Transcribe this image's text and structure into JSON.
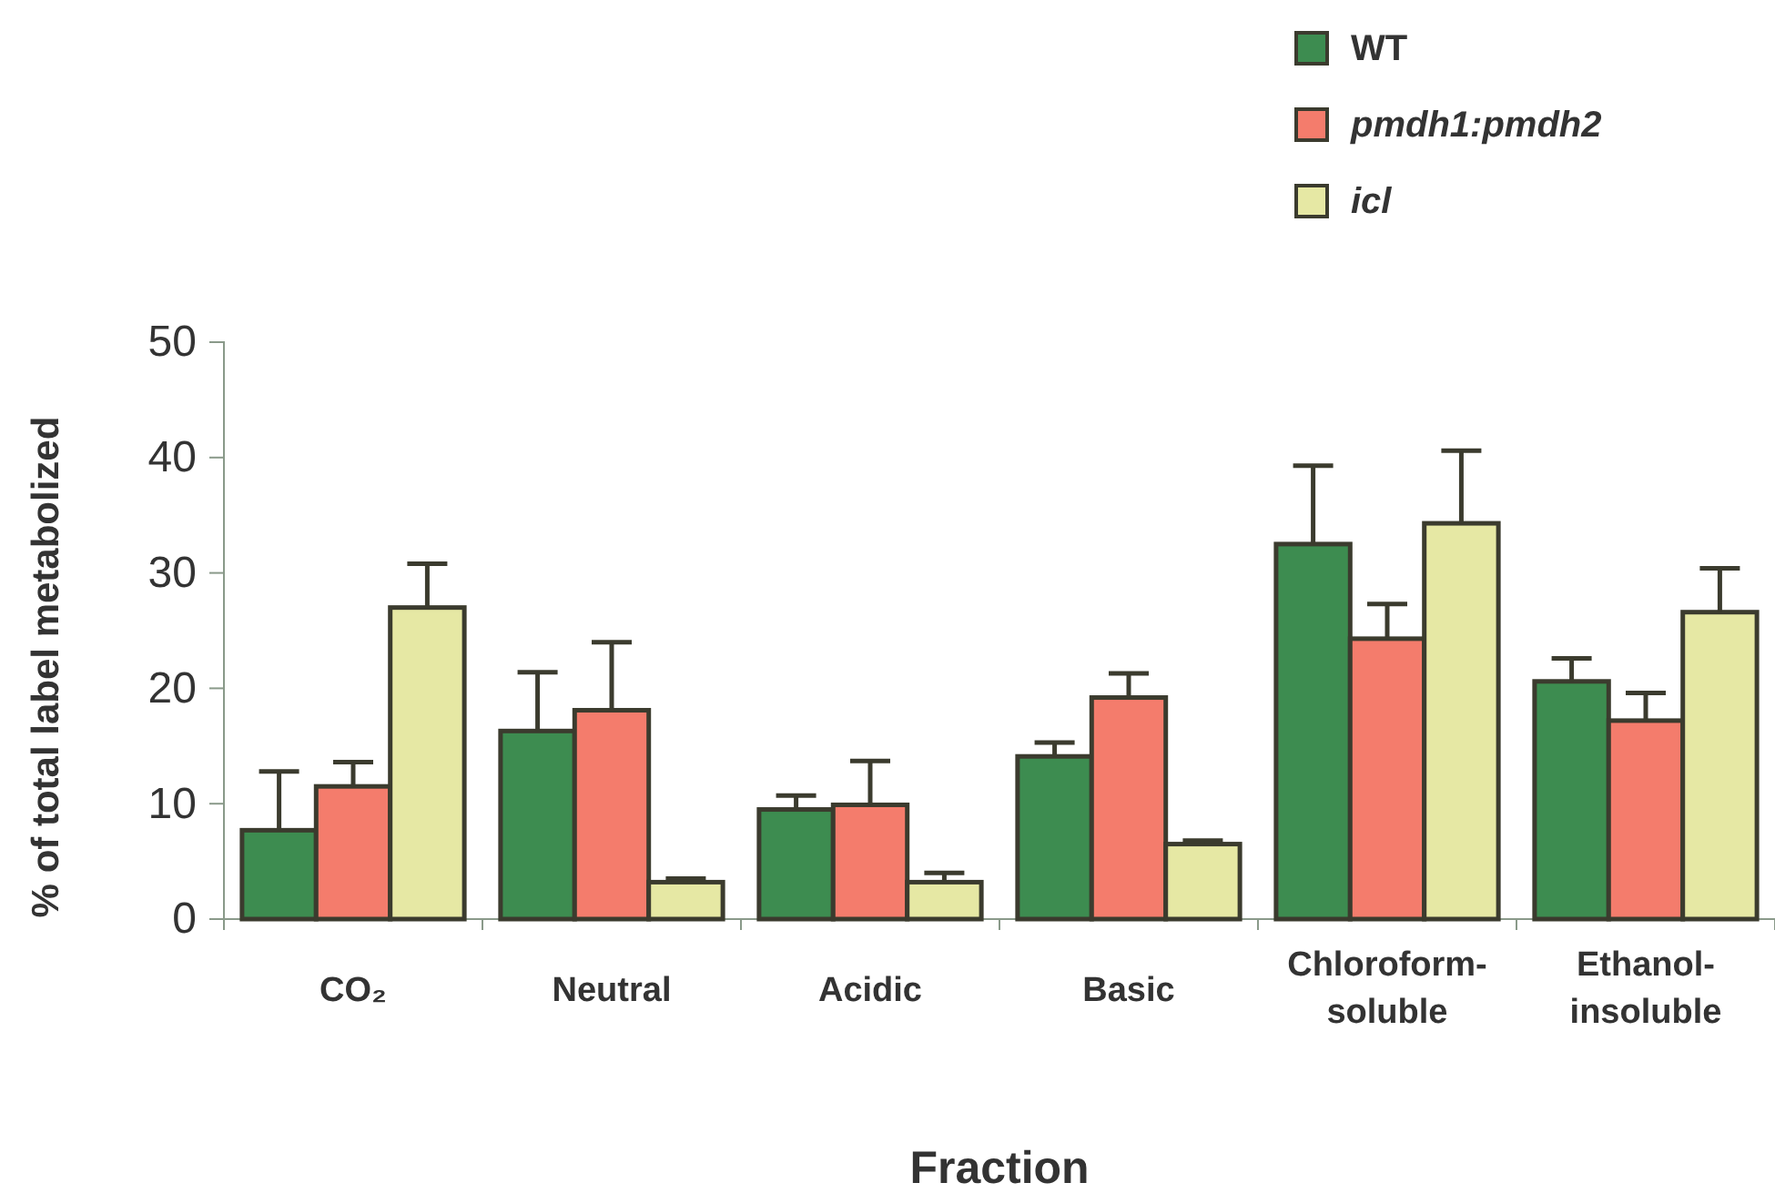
{
  "chart_data": {
    "type": "bar",
    "xlabel": "Fraction",
    "ylabel": "% of total label metabolized",
    "categories": [
      "CO₂",
      "Neutral",
      "Acidic",
      "Basic",
      "Chloroform-soluble",
      "Ethanol-insoluble"
    ],
    "series": [
      {
        "name": "WT",
        "color": "#3d8c50",
        "values": [
          7.7,
          16.3,
          9.5,
          14.1,
          32.5,
          20.6
        ],
        "errors": [
          [
            7.7,
            12.8
          ],
          [
            16.3,
            21.4
          ],
          [
            9.5,
            10.7
          ],
          [
            14.1,
            15.3
          ],
          [
            32.5,
            39.3
          ],
          [
            20.6,
            22.6
          ]
        ]
      },
      {
        "name": "pmdh1:pmdh2",
        "color": "#f47c6c",
        "values": [
          11.5,
          18.1,
          9.9,
          19.2,
          24.3,
          17.2
        ],
        "errors": [
          [
            11.5,
            13.6
          ],
          [
            18.1,
            24.0
          ],
          [
            9.9,
            13.7
          ],
          [
            19.2,
            21.3
          ],
          [
            24.3,
            27.3
          ],
          [
            17.2,
            19.6
          ]
        ]
      },
      {
        "name": "icl",
        "color": "#e6e8a4",
        "values": [
          27.0,
          3.2,
          3.2,
          6.5,
          34.3,
          26.6
        ],
        "errors": [
          [
            27.0,
            30.8
          ],
          [
            3.2,
            3.5
          ],
          [
            3.2,
            4.0
          ],
          [
            6.5,
            6.8
          ],
          [
            34.3,
            40.6
          ],
          [
            26.6,
            30.4
          ]
        ]
      }
    ],
    "ylim": [
      0,
      50
    ],
    "yticks": [
      0,
      10,
      20,
      30,
      40,
      50
    ],
    "grid": false,
    "legend": "top right"
  }
}
